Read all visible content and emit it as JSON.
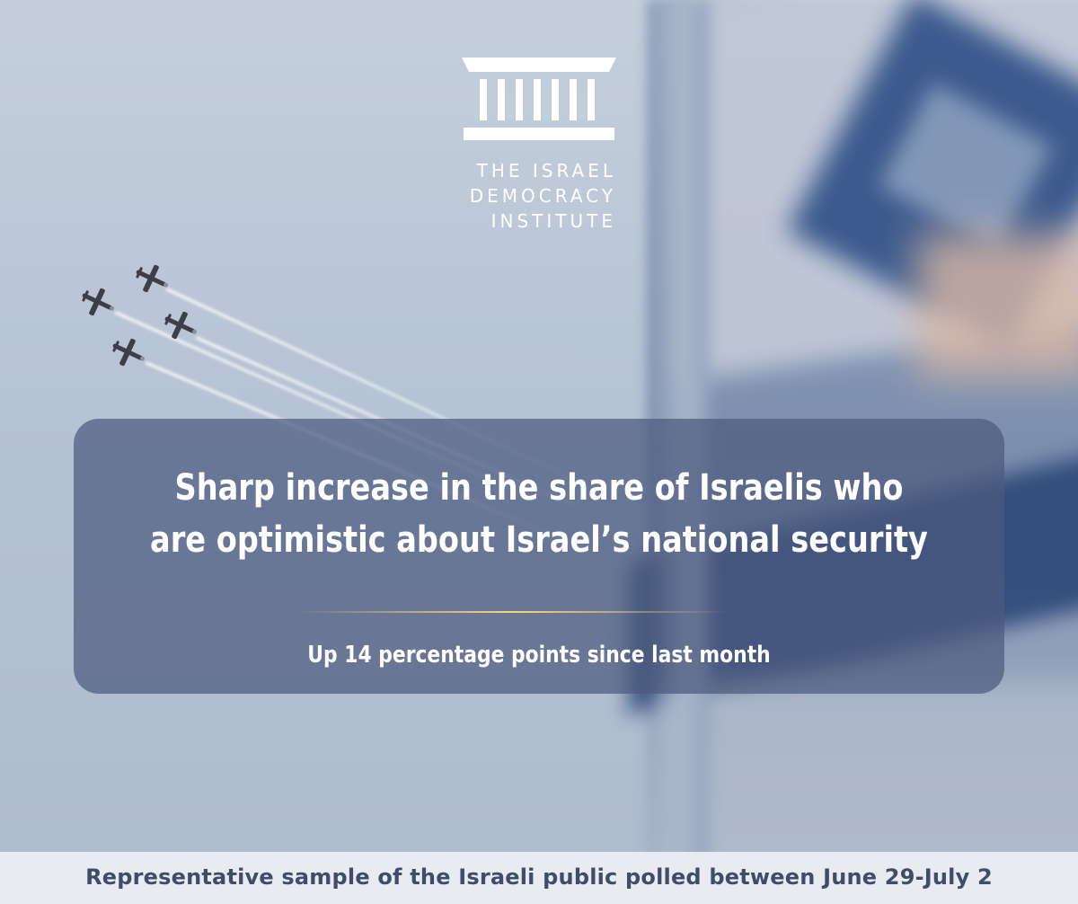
{
  "logo": {
    "name": "The Israel Democracy Institute",
    "lines": [
      "THE ISRAEL",
      "DEMOCRACY",
      "INSTITUTE"
    ]
  },
  "headline": "Sharp increase in the share of Israelis who are optimistic about Israel’s national security",
  "subheadline": "Up 14 percentage points since last month",
  "footer": "Representative sample of the Israeli public polled between June 29-July 2",
  "colors": {
    "panel": "#4c5a7e",
    "divider": "#f6d676",
    "footer_text": "#3f4d6b",
    "flag_blue": "#2e4f86"
  }
}
